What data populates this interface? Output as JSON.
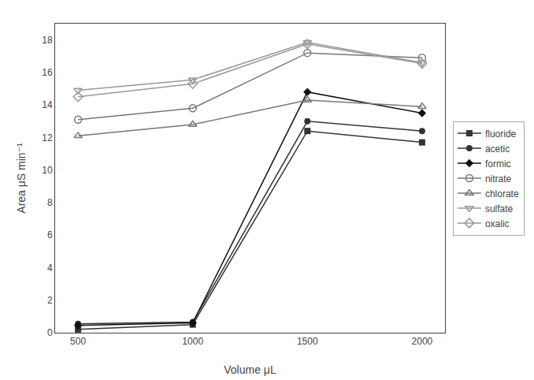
{
  "chart_data": {
    "type": "line",
    "x": [
      500,
      1000,
      1500,
      2000
    ],
    "series": [
      {
        "name": "fluoride",
        "values": [
          0.2,
          0.5,
          12.4,
          11.7
        ],
        "marker": "square",
        "color": "#333333"
      },
      {
        "name": "acetic",
        "values": [
          0.55,
          0.65,
          13.0,
          12.4
        ],
        "marker": "circle",
        "color": "#333333"
      },
      {
        "name": "formic",
        "values": [
          0.45,
          0.6,
          14.8,
          13.5
        ],
        "marker": "diamond",
        "color": "#111111"
      },
      {
        "name": "nitrate",
        "values": [
          13.1,
          13.8,
          17.2,
          16.9
        ],
        "marker": "circle-open",
        "color": "#777777"
      },
      {
        "name": "chlorate",
        "values": [
          12.1,
          12.8,
          14.3,
          13.9
        ],
        "marker": "triangle-up-open",
        "color": "#777777"
      },
      {
        "name": "sulfate",
        "values": [
          14.9,
          15.55,
          17.85,
          16.6
        ],
        "marker": "triangle-down-open",
        "color": "#999999"
      },
      {
        "name": "oxalic",
        "values": [
          14.5,
          15.3,
          17.75,
          16.55
        ],
        "marker": "diamond-open",
        "color": "#999999"
      }
    ],
    "xlabel": "Volume μL",
    "ylabel": "Area μS min⁻¹",
    "xlim": [
      400,
      2100
    ],
    "ylim": [
      0,
      19
    ],
    "xticks": [
      500,
      1000,
      1500,
      2000
    ],
    "yticks": [
      0,
      2,
      4,
      6,
      8,
      10,
      12,
      14,
      16,
      18
    ],
    "grid": false,
    "legend": "right"
  }
}
